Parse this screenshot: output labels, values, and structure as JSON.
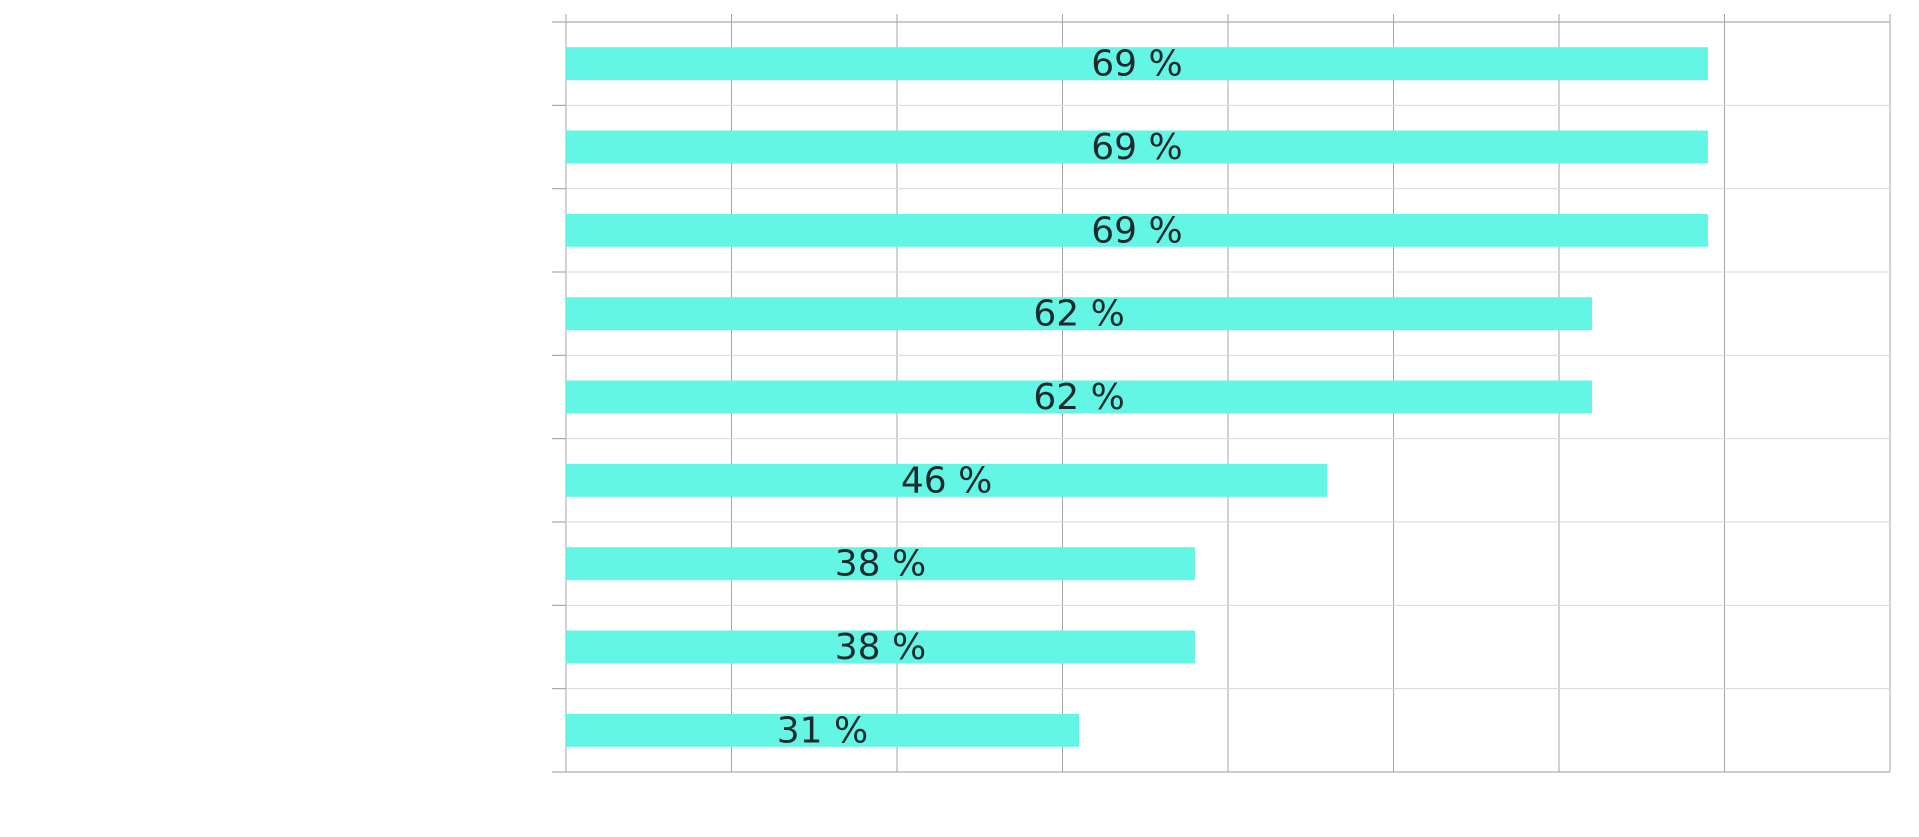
{
  "chart_data": {
    "type": "bar",
    "orientation": "horizontal",
    "title": "",
    "xlabel": "",
    "ylabel": "",
    "categories": [
      "",
      "",
      "",
      "",
      "",
      "",
      "",
      "",
      ""
    ],
    "values": [
      69,
      69,
      69,
      62,
      62,
      46,
      38,
      38,
      31
    ],
    "value_labels": [
      "69 %",
      "69 %",
      "69 %",
      "62 %",
      "62 %",
      "46 %",
      "38 %",
      "38 %",
      "31 %"
    ],
    "unit": "%",
    "xlim": [
      0,
      80
    ],
    "x_gridline_step": 10,
    "grid": true,
    "bar_color": "#64f6e4",
    "legend": "none"
  }
}
